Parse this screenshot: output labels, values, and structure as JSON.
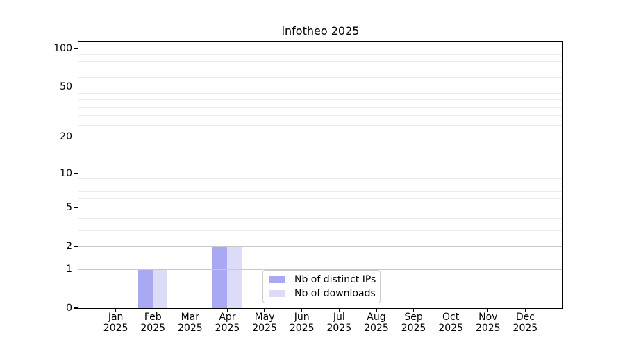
{
  "figure": {
    "background": "#ffffff"
  },
  "chart_data": {
    "type": "bar",
    "title": "infotheo 2025",
    "x_categories": [
      "Jan",
      "Feb",
      "Mar",
      "Apr",
      "May",
      "Jun",
      "Jul",
      "Aug",
      "Sep",
      "Oct",
      "Nov",
      "Dec"
    ],
    "x_year_label": "2025",
    "series": [
      {
        "name": "Nb of distinct IPs",
        "color": "#a9a9f3",
        "values": [
          0,
          1,
          0,
          2,
          0,
          0,
          0,
          0,
          0,
          0,
          0,
          0
        ]
      },
      {
        "name": "Nb of downloads",
        "color": "#dcdcf8",
        "values": [
          0,
          1,
          0,
          2,
          0,
          0,
          0,
          0,
          0,
          0,
          0,
          0
        ]
      }
    ],
    "yscale": "log10(value+1)",
    "ylim": [
      0,
      113
    ],
    "y_tick_values": [
      0,
      1,
      2,
      5,
      10,
      20,
      50,
      100
    ],
    "y_minor_grid_values": [
      3,
      4,
      6,
      7,
      8,
      9,
      25,
      30,
      35,
      40,
      45,
      60,
      70,
      80,
      90
    ],
    "grid": "horizontal, drawn above bars",
    "legend_position": "inside bottom-center"
  },
  "style": {
    "major_grid_color": "#c8c8c8",
    "minor_grid_color": "#ececec",
    "axis_color": "#000000",
    "text_color": "#000000",
    "legend_border_color": "#cccccc",
    "legend_bg_color": "#ffffff"
  }
}
